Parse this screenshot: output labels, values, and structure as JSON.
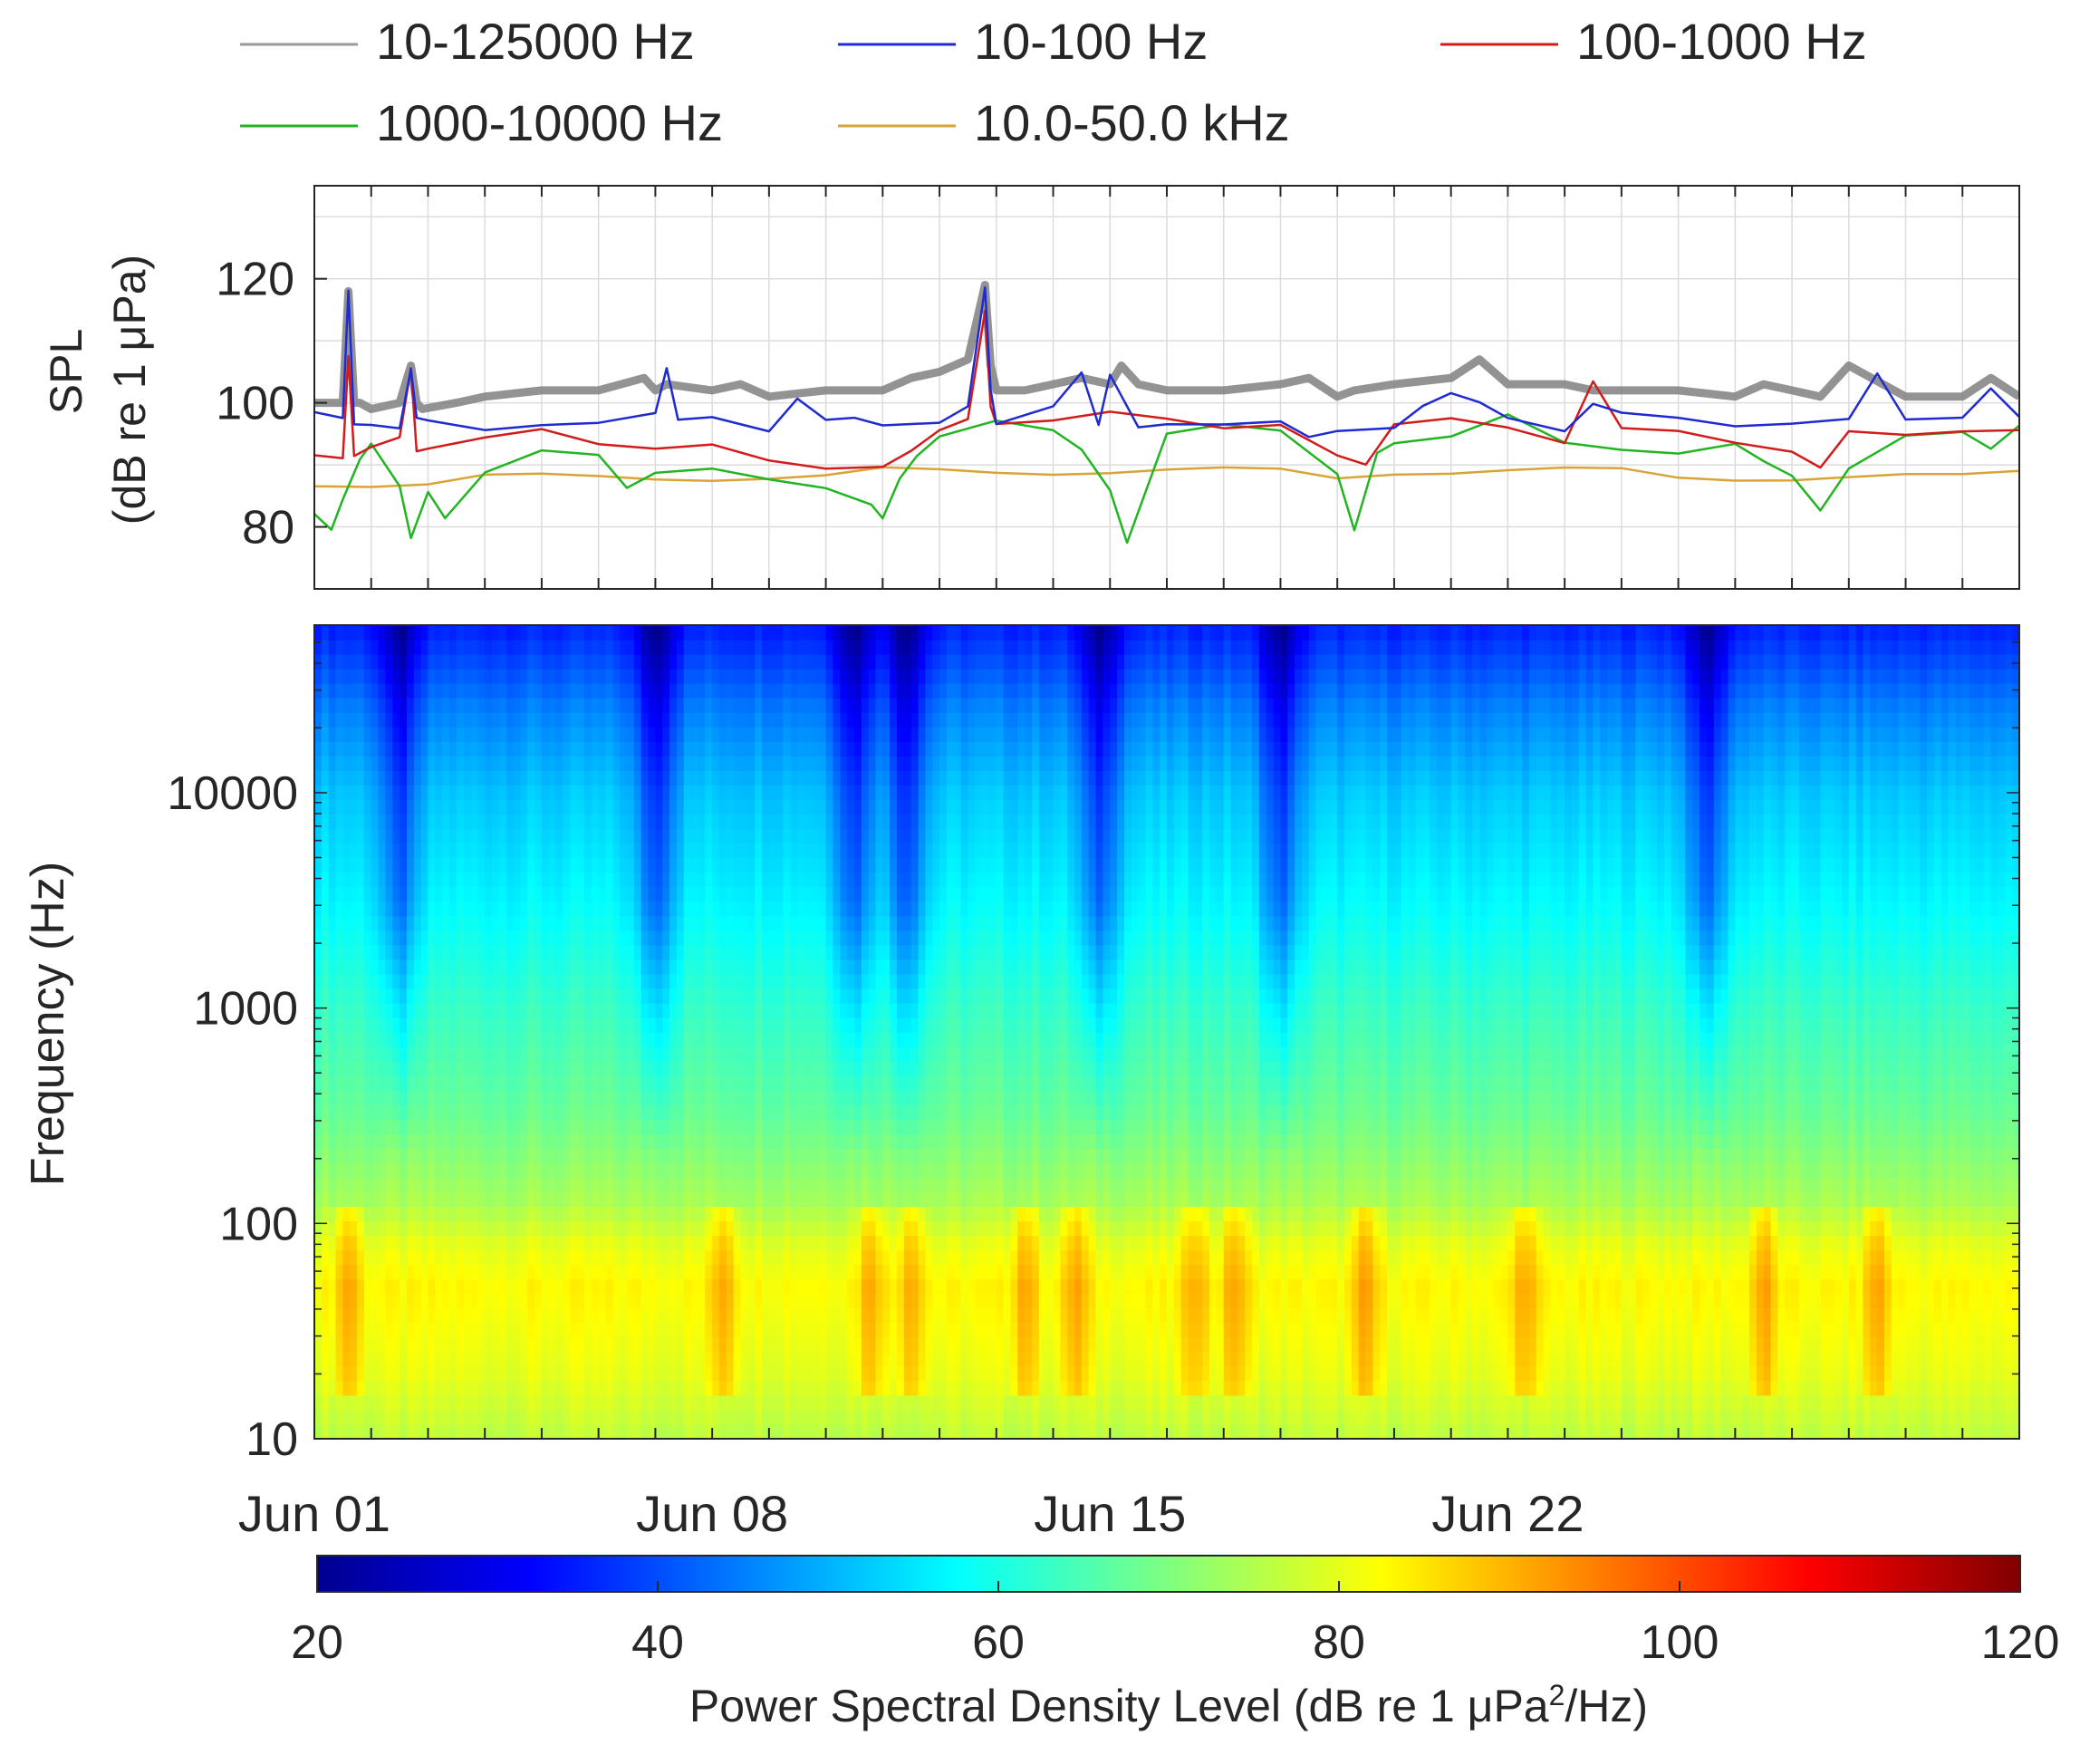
{
  "legend": {
    "placement": "top",
    "entries": [
      {
        "label": "10-125000 Hz",
        "color": "#9a9a9a"
      },
      {
        "label": "10-100 Hz",
        "color": "#1f2bd0"
      },
      {
        "label": "100-1000 Hz",
        "color": "#d21b1b"
      },
      {
        "label": "1000-10000 Hz",
        "color": "#22b522"
      },
      {
        "label": "10.0-50.0 kHz",
        "color": "#d9a436"
      }
    ]
  },
  "chart_data": [
    {
      "type": "line",
      "ylabel": "SPL",
      "ylabel_units": "(dB re 1 μPa)",
      "xlim": [
        0,
        30
      ],
      "ylim": [
        70,
        135
      ],
      "yticks": [
        80,
        100,
        120
      ],
      "grid": true,
      "x_unit": "days since Jun 01",
      "series": [
        {
          "name": "10-125000 Hz",
          "color": "#808080",
          "x": [
            0,
            0.5,
            0.6,
            0.7,
            0.8,
            1.0,
            1.5,
            1.7,
            1.8,
            1.9,
            2.5,
            3,
            4,
            5,
            5.8,
            6,
            6.2,
            7,
            7.5,
            8,
            9,
            10,
            10.5,
            11,
            11.5,
            11.8,
            11.9,
            12,
            12.5,
            13,
            13.5,
            14,
            14.2,
            14.5,
            15,
            16,
            17,
            17.5,
            18,
            18.3,
            19,
            20,
            20.5,
            21,
            22,
            22.5,
            23,
            24,
            25,
            25.5,
            26,
            26.5,
            27,
            28,
            29,
            29.5,
            30
          ],
          "values": [
            100,
            100,
            118,
            100,
            100,
            99,
            100,
            106,
            100,
            99,
            100,
            101,
            102,
            102,
            104,
            102,
            103,
            102,
            103,
            101,
            102,
            102,
            104,
            105,
            107,
            119,
            106,
            102,
            102,
            103,
            104,
            103,
            106,
            103,
            102,
            102,
            103,
            104,
            101,
            102,
            103,
            104,
            107,
            103,
            103,
            102,
            102,
            102,
            101,
            103,
            102,
            101,
            106,
            101,
            101,
            104,
            101
          ]
        },
        {
          "name": "10-100 Hz",
          "color": "#1f2bd0",
          "x": [
            0,
            0.5,
            0.6,
            0.7,
            1,
            1.5,
            1.7,
            1.8,
            2,
            3,
            4,
            5,
            6,
            6.2,
            6.4,
            7,
            8,
            8.5,
            9,
            9.5,
            10,
            11,
            11.5,
            11.8,
            11.9,
            12,
            13,
            13.5,
            13.8,
            14,
            14.5,
            15,
            16,
            17,
            17.5,
            18,
            19,
            19.5,
            20,
            20.5,
            21,
            22,
            22.5,
            23,
            24,
            25,
            26,
            27,
            27.5,
            28,
            29,
            29.5,
            30
          ],
          "values": [
            98,
            97,
            118,
            97,
            97,
            96,
            105,
            97,
            97,
            96,
            97,
            97,
            98,
            105,
            97,
            98,
            96,
            101,
            97,
            97,
            96,
            97,
            100,
            119,
            102,
            96,
            99,
            105,
            97,
            105,
            96,
            96,
            96,
            97,
            95,
            96,
            96,
            99,
            101,
            100,
            98,
            96,
            100,
            98,
            97,
            96,
            97,
            98,
            105,
            97,
            97,
            102,
            98
          ]
        },
        {
          "name": "100-1000 Hz",
          "color": "#d21b1b",
          "x": [
            0,
            0.5,
            0.6,
            0.7,
            1,
            1.5,
            1.7,
            1.8,
            2,
            3,
            4,
            5,
            6,
            7,
            8,
            9,
            10,
            10.5,
            11,
            11.5,
            11.8,
            11.9,
            12,
            13,
            14,
            15,
            16,
            17,
            18,
            18.5,
            19,
            20,
            21,
            22,
            22.5,
            23,
            24,
            25,
            26,
            26.5,
            27,
            28,
            29,
            30
          ],
          "values": [
            91,
            91,
            108,
            92,
            93,
            94,
            105,
            92,
            93,
            95,
            96,
            93,
            92,
            93,
            91,
            90,
            90,
            92,
            95,
            97,
            115,
            100,
            97,
            97,
            98,
            97,
            96,
            97,
            92,
            90,
            96,
            97,
            96,
            94,
            104,
            96,
            95,
            93,
            92,
            90,
            96,
            95,
            95,
            95
          ]
        },
        {
          "name": "1000-10000 Hz",
          "color": "#22b522",
          "x": [
            0,
            0.3,
            0.5,
            0.8,
            1,
            1.5,
            1.7,
            2,
            2.3,
            3,
            4,
            5,
            5.5,
            6,
            7,
            8,
            9,
            9.8,
            10,
            10.3,
            10.6,
            11,
            12,
            13,
            13.5,
            14,
            14.3,
            14.7,
            15,
            16,
            17,
            17.5,
            18,
            18.3,
            18.7,
            19,
            20,
            21,
            22,
            23,
            24,
            25,
            25.5,
            26,
            26.5,
            27,
            28,
            29,
            29.5,
            30
          ],
          "values": [
            82,
            80,
            85,
            91,
            93,
            86,
            78,
            86,
            82,
            89,
            92,
            91,
            86,
            89,
            90,
            88,
            86,
            83,
            81,
            88,
            92,
            95,
            97,
            95,
            92,
            86,
            78,
            88,
            95,
            96,
            95,
            92,
            89,
            80,
            92,
            93,
            94,
            98,
            94,
            93,
            92,
            93,
            90,
            88,
            83,
            90,
            95,
            95,
            92,
            96
          ]
        },
        {
          "name": "10.0-50.0 kHz",
          "color": "#d9a436",
          "x": [
            0,
            1,
            2,
            3,
            4,
            5,
            6,
            7,
            8,
            9,
            10,
            11,
            12,
            13,
            14,
            15,
            16,
            17,
            18,
            19,
            20,
            21,
            22,
            23,
            24,
            25,
            26,
            27,
            28,
            29,
            30
          ],
          "values": [
            87,
            87,
            87,
            88,
            88,
            88,
            88,
            88,
            88,
            88,
            89,
            89,
            89,
            89,
            89,
            89,
            89,
            89,
            88,
            89,
            89,
            89,
            89,
            89,
            88,
            88,
            88,
            88,
            88,
            88,
            89
          ]
        }
      ]
    },
    {
      "type": "heatmap",
      "ylabel": "Frequency (Hz)",
      "yscale": "log",
      "ylim": [
        10,
        60000
      ],
      "yticks": [
        10,
        100,
        1000,
        10000
      ],
      "xlim": [
        0,
        30
      ],
      "xtick_labels": [
        "Jun 01",
        "Jun 08",
        "Jun 15",
        "Jun 22"
      ],
      "xtick_days": [
        0,
        7,
        14,
        21
      ],
      "quiet_events_day": [
        1.5,
        6.0,
        9.5,
        10.4,
        13.8,
        17.0,
        24.5
      ],
      "loud_events_day": [
        0.6,
        7.2,
        9.8,
        10.5,
        12.5,
        13.4,
        15.5,
        16.2,
        18.5,
        21.3,
        25.5,
        27.5
      ],
      "colorbar": {
        "label": "Power Spectral Density Level (dB re 1 μPa",
        "label_sup": "2",
        "label_tail": "/Hz)",
        "range": [
          20,
          120
        ],
        "ticks": [
          20,
          40,
          60,
          80,
          100,
          120
        ],
        "colormap": "jet"
      }
    }
  ]
}
